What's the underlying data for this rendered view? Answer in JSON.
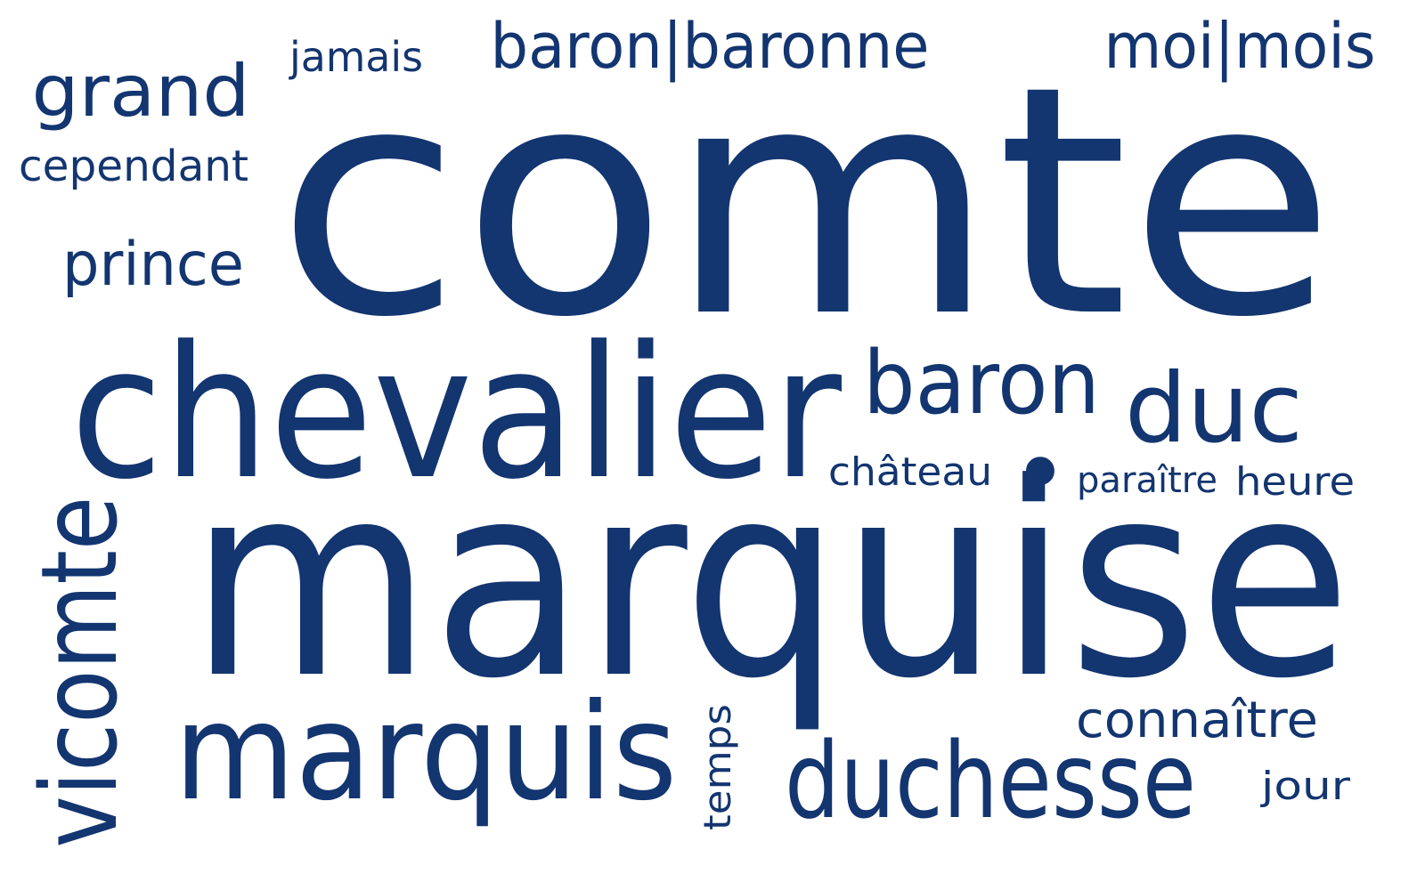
{
  "color": "#133570",
  "words": [
    {
      "id": "comte",
      "text": "comte",
      "weight": 100
    },
    {
      "id": "marquise",
      "text": "marquise",
      "weight": 90
    },
    {
      "id": "chevalier",
      "text": "chevalier",
      "weight": 62
    },
    {
      "id": "marquis",
      "text": "marquis",
      "weight": 46
    },
    {
      "id": "vicomte",
      "text": "vicomte",
      "weight": 40
    },
    {
      "id": "duchesse",
      "text": "duchesse",
      "weight": 38
    },
    {
      "id": "duc",
      "text": "duc",
      "weight": 33
    },
    {
      "id": "baron",
      "text": "baron",
      "weight": 32
    },
    {
      "id": "grand",
      "text": "grand",
      "weight": 25
    },
    {
      "id": "baron-baronne",
      "text": "baron|baronne",
      "weight": 22
    },
    {
      "id": "moi-mois",
      "text": "moi|mois",
      "weight": 22
    },
    {
      "id": "prince",
      "text": "prince",
      "weight": 22
    },
    {
      "id": "connaitre",
      "text": "connaître",
      "weight": 18
    },
    {
      "id": "cependant",
      "text": "cependant",
      "weight": 16
    },
    {
      "id": "chateau",
      "text": "château",
      "weight": 16
    },
    {
      "id": "jamais",
      "text": "jamais",
      "weight": 15
    },
    {
      "id": "jour",
      "text": "jour",
      "weight": 15
    },
    {
      "id": "paraitre",
      "text": "paraître",
      "weight": 14
    },
    {
      "id": "heure",
      "text": "heure",
      "weight": 14
    },
    {
      "id": "temps",
      "text": "temps",
      "weight": 14
    },
    {
      "id": "dot",
      "text": "•",
      "weight": 14
    }
  ]
}
